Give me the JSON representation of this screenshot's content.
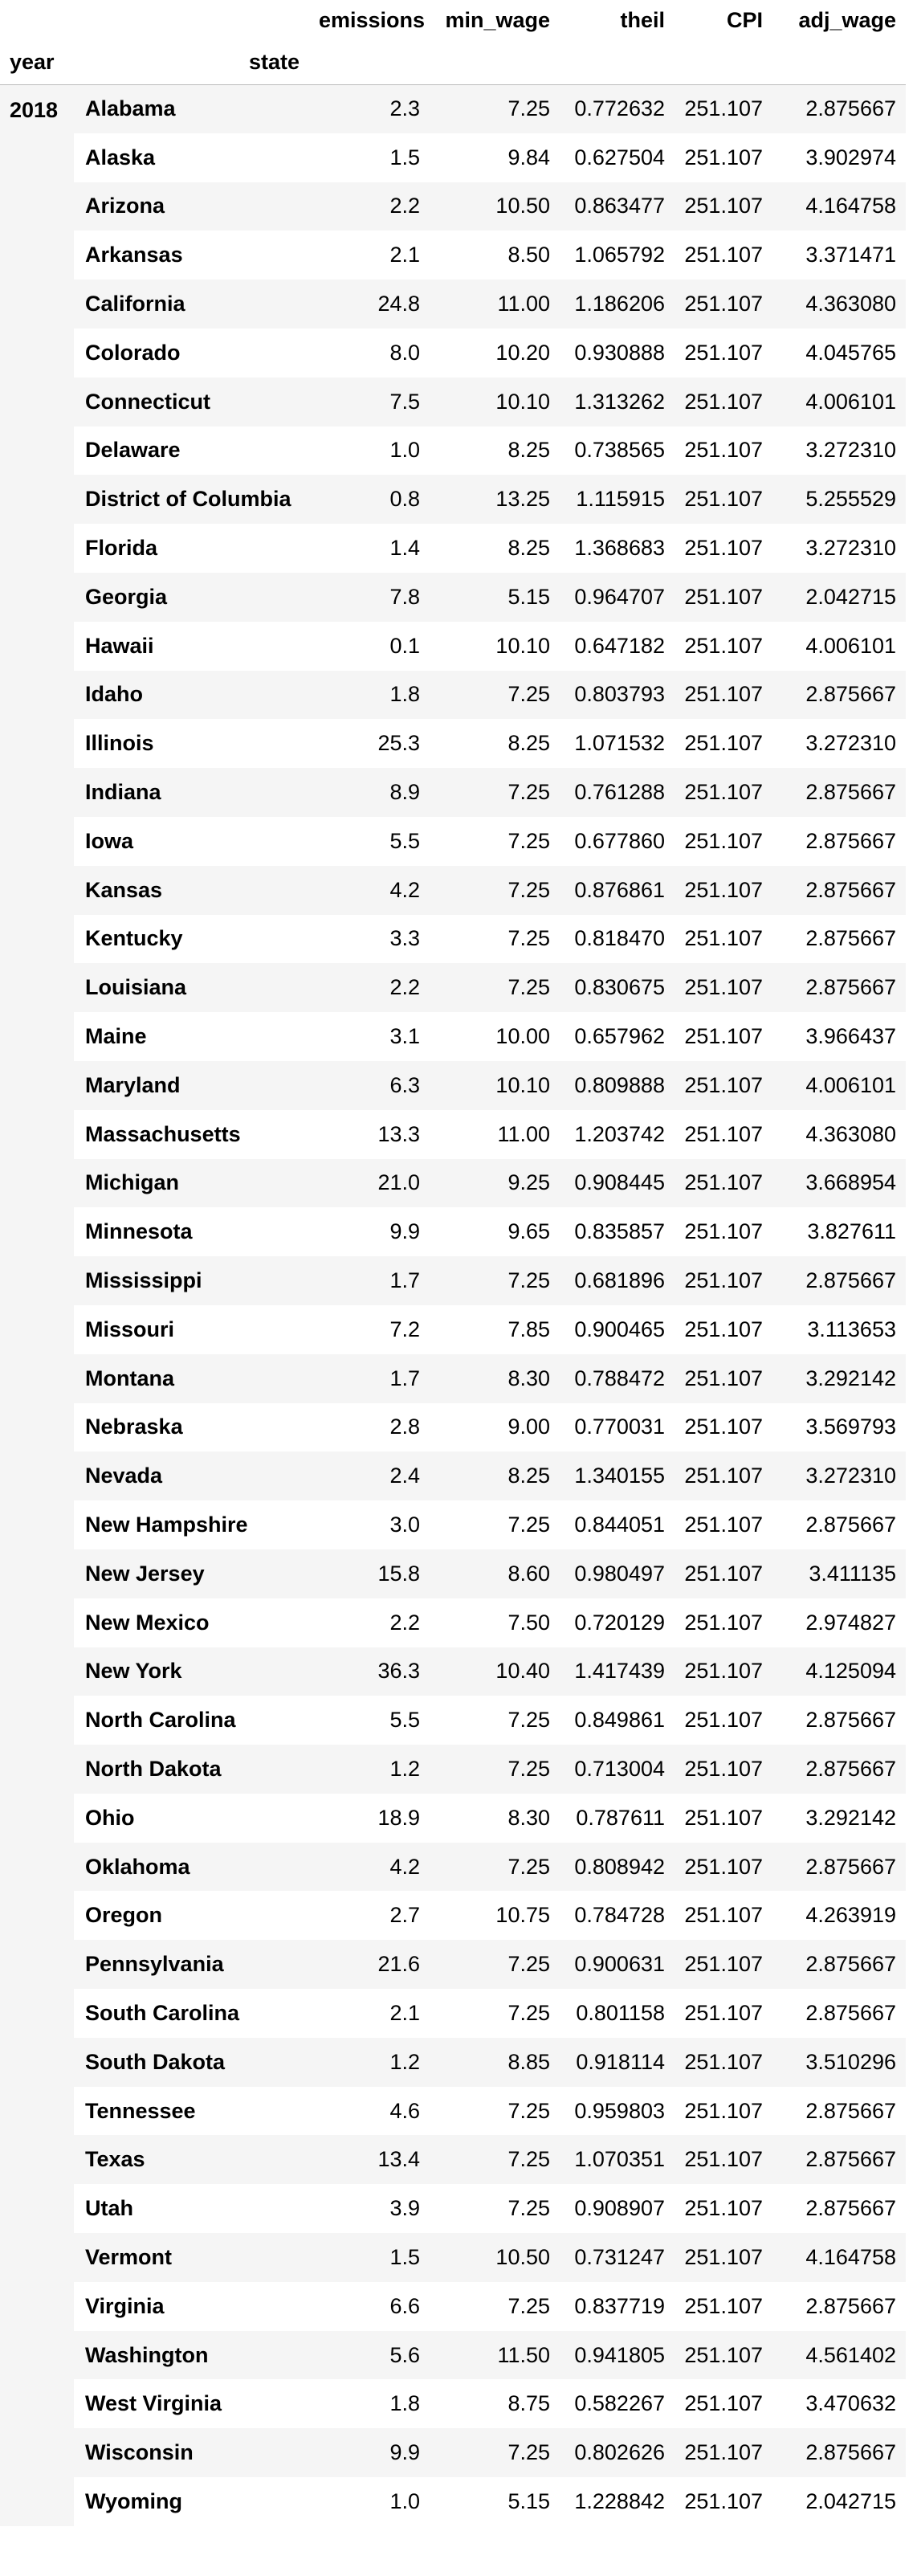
{
  "table": {
    "columns": [
      "emissions",
      "min_wage",
      "theil",
      "CPI",
      "adj_wage"
    ],
    "index_names": [
      "year",
      "state"
    ],
    "year": "2018",
    "rows": [
      [
        "Alabama",
        "2.3",
        "7.25",
        "0.772632",
        "251.107",
        "2.875667"
      ],
      [
        "Alaska",
        "1.5",
        "9.84",
        "0.627504",
        "251.107",
        "3.902974"
      ],
      [
        "Arizona",
        "2.2",
        "10.50",
        "0.863477",
        "251.107",
        "4.164758"
      ],
      [
        "Arkansas",
        "2.1",
        "8.50",
        "1.065792",
        "251.107",
        "3.371471"
      ],
      [
        "California",
        "24.8",
        "11.00",
        "1.186206",
        "251.107",
        "4.363080"
      ],
      [
        "Colorado",
        "8.0",
        "10.20",
        "0.930888",
        "251.107",
        "4.045765"
      ],
      [
        "Connecticut",
        "7.5",
        "10.10",
        "1.313262",
        "251.107",
        "4.006101"
      ],
      [
        "Delaware",
        "1.0",
        "8.25",
        "0.738565",
        "251.107",
        "3.272310"
      ],
      [
        "District of Columbia",
        "0.8",
        "13.25",
        "1.115915",
        "251.107",
        "5.255529"
      ],
      [
        "Florida",
        "1.4",
        "8.25",
        "1.368683",
        "251.107",
        "3.272310"
      ],
      [
        "Georgia",
        "7.8",
        "5.15",
        "0.964707",
        "251.107",
        "2.042715"
      ],
      [
        "Hawaii",
        "0.1",
        "10.10",
        "0.647182",
        "251.107",
        "4.006101"
      ],
      [
        "Idaho",
        "1.8",
        "7.25",
        "0.803793",
        "251.107",
        "2.875667"
      ],
      [
        "Illinois",
        "25.3",
        "8.25",
        "1.071532",
        "251.107",
        "3.272310"
      ],
      [
        "Indiana",
        "8.9",
        "7.25",
        "0.761288",
        "251.107",
        "2.875667"
      ],
      [
        "Iowa",
        "5.5",
        "7.25",
        "0.677860",
        "251.107",
        "2.875667"
      ],
      [
        "Kansas",
        "4.2",
        "7.25",
        "0.876861",
        "251.107",
        "2.875667"
      ],
      [
        "Kentucky",
        "3.3",
        "7.25",
        "0.818470",
        "251.107",
        "2.875667"
      ],
      [
        "Louisiana",
        "2.2",
        "7.25",
        "0.830675",
        "251.107",
        "2.875667"
      ],
      [
        "Maine",
        "3.1",
        "10.00",
        "0.657962",
        "251.107",
        "3.966437"
      ],
      [
        "Maryland",
        "6.3",
        "10.10",
        "0.809888",
        "251.107",
        "4.006101"
      ],
      [
        "Massachusetts",
        "13.3",
        "11.00",
        "1.203742",
        "251.107",
        "4.363080"
      ],
      [
        "Michigan",
        "21.0",
        "9.25",
        "0.908445",
        "251.107",
        "3.668954"
      ],
      [
        "Minnesota",
        "9.9",
        "9.65",
        "0.835857",
        "251.107",
        "3.827611"
      ],
      [
        "Mississippi",
        "1.7",
        "7.25",
        "0.681896",
        "251.107",
        "2.875667"
      ],
      [
        "Missouri",
        "7.2",
        "7.85",
        "0.900465",
        "251.107",
        "3.113653"
      ],
      [
        "Montana",
        "1.7",
        "8.30",
        "0.788472",
        "251.107",
        "3.292142"
      ],
      [
        "Nebraska",
        "2.8",
        "9.00",
        "0.770031",
        "251.107",
        "3.569793"
      ],
      [
        "Nevada",
        "2.4",
        "8.25",
        "1.340155",
        "251.107",
        "3.272310"
      ],
      [
        "New Hampshire",
        "3.0",
        "7.25",
        "0.844051",
        "251.107",
        "2.875667"
      ],
      [
        "New Jersey",
        "15.8",
        "8.60",
        "0.980497",
        "251.107",
        "3.411135"
      ],
      [
        "New Mexico",
        "2.2",
        "7.50",
        "0.720129",
        "251.107",
        "2.974827"
      ],
      [
        "New York",
        "36.3",
        "10.40",
        "1.417439",
        "251.107",
        "4.125094"
      ],
      [
        "North Carolina",
        "5.5",
        "7.25",
        "0.849861",
        "251.107",
        "2.875667"
      ],
      [
        "North Dakota",
        "1.2",
        "7.25",
        "0.713004",
        "251.107",
        "2.875667"
      ],
      [
        "Ohio",
        "18.9",
        "8.30",
        "0.787611",
        "251.107",
        "3.292142"
      ],
      [
        "Oklahoma",
        "4.2",
        "7.25",
        "0.808942",
        "251.107",
        "2.875667"
      ],
      [
        "Oregon",
        "2.7",
        "10.75",
        "0.784728",
        "251.107",
        "4.263919"
      ],
      [
        "Pennsylvania",
        "21.6",
        "7.25",
        "0.900631",
        "251.107",
        "2.875667"
      ],
      [
        "South Carolina",
        "2.1",
        "7.25",
        "0.801158",
        "251.107",
        "2.875667"
      ],
      [
        "South Dakota",
        "1.2",
        "8.85",
        "0.918114",
        "251.107",
        "3.510296"
      ],
      [
        "Tennessee",
        "4.6",
        "7.25",
        "0.959803",
        "251.107",
        "2.875667"
      ],
      [
        "Texas",
        "13.4",
        "7.25",
        "1.070351",
        "251.107",
        "2.875667"
      ],
      [
        "Utah",
        "3.9",
        "7.25",
        "0.908907",
        "251.107",
        "2.875667"
      ],
      [
        "Vermont",
        "1.5",
        "10.50",
        "0.731247",
        "251.107",
        "4.164758"
      ],
      [
        "Virginia",
        "6.6",
        "7.25",
        "0.837719",
        "251.107",
        "2.875667"
      ],
      [
        "Washington",
        "5.6",
        "11.50",
        "0.941805",
        "251.107",
        "4.561402"
      ],
      [
        "West Virginia",
        "1.8",
        "8.75",
        "0.582267",
        "251.107",
        "3.470632"
      ],
      [
        "Wisconsin",
        "9.9",
        "7.25",
        "0.802626",
        "251.107",
        "2.875667"
      ],
      [
        "Wyoming",
        "1.0",
        "5.15",
        "1.228842",
        "251.107",
        "2.042715"
      ]
    ]
  }
}
